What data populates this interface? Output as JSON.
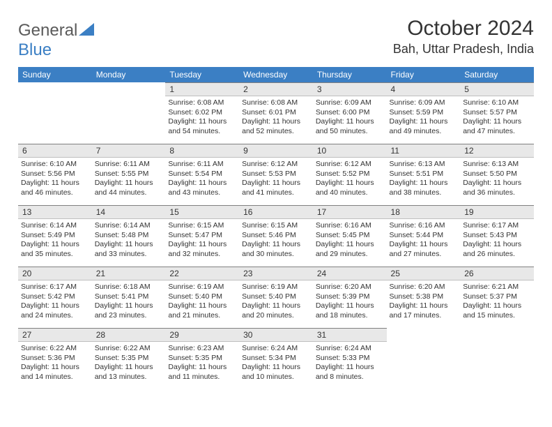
{
  "brand": {
    "part1": "General",
    "part2": "Blue"
  },
  "title": "October 2024",
  "location": "Bah, Uttar Pradesh, India",
  "colors": {
    "header_bg": "#3b7fc4",
    "header_text": "#ffffff",
    "daynum_bg": "#e8e8e8",
    "daynum_border_top": "#808080",
    "text": "#333333",
    "logo_gray": "#5a5a5a",
    "logo_blue": "#3b7fc4"
  },
  "typography": {
    "title_fontsize": 30,
    "location_fontsize": 18,
    "weekday_fontsize": 12,
    "daynum_fontsize": 12,
    "body_fontsize": 10.5
  },
  "weekdays": [
    "Sunday",
    "Monday",
    "Tuesday",
    "Wednesday",
    "Thursday",
    "Friday",
    "Saturday"
  ],
  "weeks": [
    [
      null,
      null,
      {
        "n": "1",
        "sunrise": "6:08 AM",
        "sunset": "6:02 PM",
        "daylight": "11 hours and 54 minutes."
      },
      {
        "n": "2",
        "sunrise": "6:08 AM",
        "sunset": "6:01 PM",
        "daylight": "11 hours and 52 minutes."
      },
      {
        "n": "3",
        "sunrise": "6:09 AM",
        "sunset": "6:00 PM",
        "daylight": "11 hours and 50 minutes."
      },
      {
        "n": "4",
        "sunrise": "6:09 AM",
        "sunset": "5:59 PM",
        "daylight": "11 hours and 49 minutes."
      },
      {
        "n": "5",
        "sunrise": "6:10 AM",
        "sunset": "5:57 PM",
        "daylight": "11 hours and 47 minutes."
      }
    ],
    [
      {
        "n": "6",
        "sunrise": "6:10 AM",
        "sunset": "5:56 PM",
        "daylight": "11 hours and 46 minutes."
      },
      {
        "n": "7",
        "sunrise": "6:11 AM",
        "sunset": "5:55 PM",
        "daylight": "11 hours and 44 minutes."
      },
      {
        "n": "8",
        "sunrise": "6:11 AM",
        "sunset": "5:54 PM",
        "daylight": "11 hours and 43 minutes."
      },
      {
        "n": "9",
        "sunrise": "6:12 AM",
        "sunset": "5:53 PM",
        "daylight": "11 hours and 41 minutes."
      },
      {
        "n": "10",
        "sunrise": "6:12 AM",
        "sunset": "5:52 PM",
        "daylight": "11 hours and 40 minutes."
      },
      {
        "n": "11",
        "sunrise": "6:13 AM",
        "sunset": "5:51 PM",
        "daylight": "11 hours and 38 minutes."
      },
      {
        "n": "12",
        "sunrise": "6:13 AM",
        "sunset": "5:50 PM",
        "daylight": "11 hours and 36 minutes."
      }
    ],
    [
      {
        "n": "13",
        "sunrise": "6:14 AM",
        "sunset": "5:49 PM",
        "daylight": "11 hours and 35 minutes."
      },
      {
        "n": "14",
        "sunrise": "6:14 AM",
        "sunset": "5:48 PM",
        "daylight": "11 hours and 33 minutes."
      },
      {
        "n": "15",
        "sunrise": "6:15 AM",
        "sunset": "5:47 PM",
        "daylight": "11 hours and 32 minutes."
      },
      {
        "n": "16",
        "sunrise": "6:15 AM",
        "sunset": "5:46 PM",
        "daylight": "11 hours and 30 minutes."
      },
      {
        "n": "17",
        "sunrise": "6:16 AM",
        "sunset": "5:45 PM",
        "daylight": "11 hours and 29 minutes."
      },
      {
        "n": "18",
        "sunrise": "6:16 AM",
        "sunset": "5:44 PM",
        "daylight": "11 hours and 27 minutes."
      },
      {
        "n": "19",
        "sunrise": "6:17 AM",
        "sunset": "5:43 PM",
        "daylight": "11 hours and 26 minutes."
      }
    ],
    [
      {
        "n": "20",
        "sunrise": "6:17 AM",
        "sunset": "5:42 PM",
        "daylight": "11 hours and 24 minutes."
      },
      {
        "n": "21",
        "sunrise": "6:18 AM",
        "sunset": "5:41 PM",
        "daylight": "11 hours and 23 minutes."
      },
      {
        "n": "22",
        "sunrise": "6:19 AM",
        "sunset": "5:40 PM",
        "daylight": "11 hours and 21 minutes."
      },
      {
        "n": "23",
        "sunrise": "6:19 AM",
        "sunset": "5:40 PM",
        "daylight": "11 hours and 20 minutes."
      },
      {
        "n": "24",
        "sunrise": "6:20 AM",
        "sunset": "5:39 PM",
        "daylight": "11 hours and 18 minutes."
      },
      {
        "n": "25",
        "sunrise": "6:20 AM",
        "sunset": "5:38 PM",
        "daylight": "11 hours and 17 minutes."
      },
      {
        "n": "26",
        "sunrise": "6:21 AM",
        "sunset": "5:37 PM",
        "daylight": "11 hours and 15 minutes."
      }
    ],
    [
      {
        "n": "27",
        "sunrise": "6:22 AM",
        "sunset": "5:36 PM",
        "daylight": "11 hours and 14 minutes."
      },
      {
        "n": "28",
        "sunrise": "6:22 AM",
        "sunset": "5:35 PM",
        "daylight": "11 hours and 13 minutes."
      },
      {
        "n": "29",
        "sunrise": "6:23 AM",
        "sunset": "5:35 PM",
        "daylight": "11 hours and 11 minutes."
      },
      {
        "n": "30",
        "sunrise": "6:24 AM",
        "sunset": "5:34 PM",
        "daylight": "11 hours and 10 minutes."
      },
      {
        "n": "31",
        "sunrise": "6:24 AM",
        "sunset": "5:33 PM",
        "daylight": "11 hours and 8 minutes."
      },
      null,
      null
    ]
  ],
  "labels": {
    "sunrise": "Sunrise:",
    "sunset": "Sunset:",
    "daylight": "Daylight:"
  }
}
